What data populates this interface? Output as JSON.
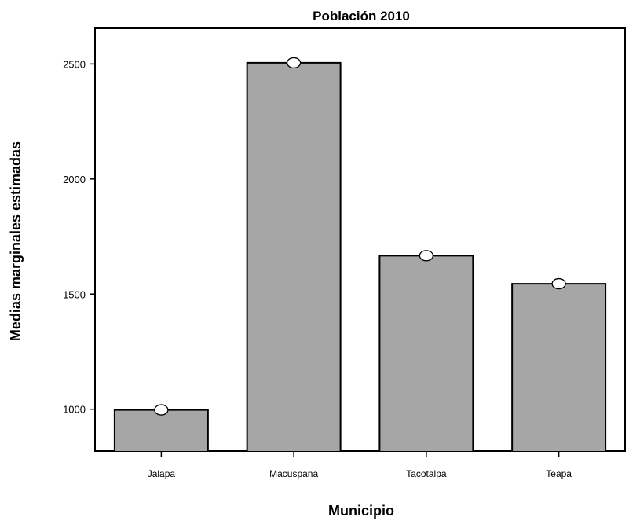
{
  "chart_data": {
    "type": "bar",
    "title": "Población 2010",
    "xlabel": "Municipio",
    "ylabel": "Medias marginales estimadas",
    "categories": [
      "Jalapa",
      "Macuspana",
      "Tacotalpa",
      "Teapa"
    ],
    "values": [
      997,
      2505,
      1667,
      1545
    ],
    "ylim": [
      818,
      2655
    ],
    "yticks": [
      1000,
      1500,
      2000,
      2500
    ],
    "ytick_labels": [
      "1000",
      "1500",
      "2000",
      "2500"
    ],
    "bar_baseline": 818,
    "markers": "circle",
    "grid": false,
    "legend": "none",
    "colors": {
      "bar_fill": "#a6a6a6",
      "bar_stroke": "#000000",
      "marker_fill": "#ffffff"
    }
  }
}
